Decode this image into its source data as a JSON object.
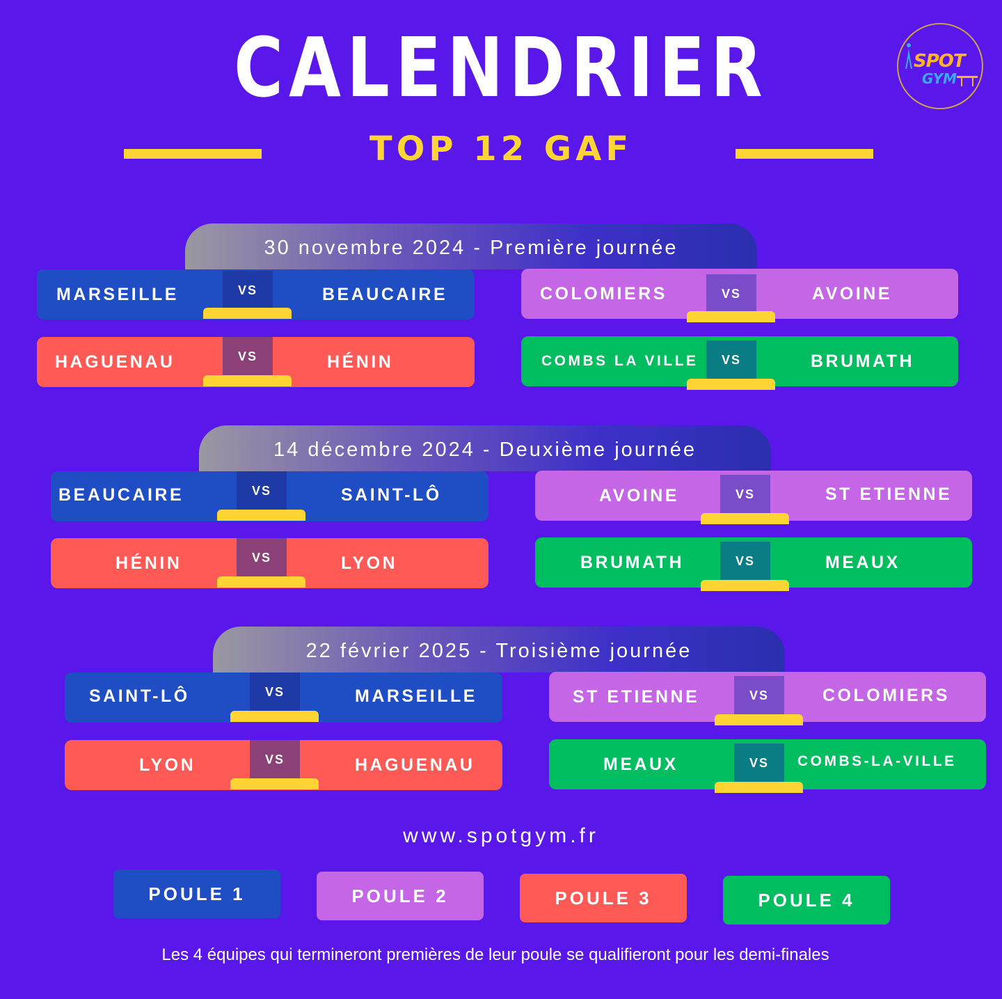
{
  "title": "CALENDRIER",
  "subtitle": "TOP 12 GAF",
  "logo": {
    "line1": "SPOT",
    "line2": "GYM"
  },
  "colors": {
    "background": "#5a17ea",
    "accent": "#ffd535",
    "poule1": "#1e4dc4",
    "poule2": "#c466e6",
    "poule3": "#ff5a56",
    "poule4": "#00be60"
  },
  "days": [
    {
      "header": "30 novembre 2024 - Première journée",
      "matches": [
        {
          "home": "MARSEILLE",
          "vs": "VS",
          "away": "BEAUCAIRE"
        },
        {
          "home": "COLOMIERS",
          "vs": "VS",
          "away": "AVOINE"
        },
        {
          "home": "HAGUENAU",
          "vs": "VS",
          "away": "HÉNIN"
        },
        {
          "home": "COMBS LA VILLE",
          "vs": "VS",
          "away": "BRUMATH"
        }
      ]
    },
    {
      "header": "14 décembre 2024 - Deuxième journée",
      "matches": [
        {
          "home": "BEAUCAIRE",
          "vs": "VS",
          "away": "SAINT-LÔ"
        },
        {
          "home": "AVOINE",
          "vs": "VS",
          "away": "ST ETIENNE"
        },
        {
          "home": "HÉNIN",
          "vs": "VS",
          "away": "LYON"
        },
        {
          "home": "BRUMATH",
          "vs": "VS",
          "away": "MEAUX"
        }
      ]
    },
    {
      "header": "22 février 2025 - Troisième journée",
      "matches": [
        {
          "home": "SAINT-LÔ",
          "vs": "VS",
          "away": "MARSEILLE"
        },
        {
          "home": "ST ETIENNE",
          "vs": "VS",
          "away": "COLOMIERS"
        },
        {
          "home": "LYON",
          "vs": "VS",
          "away": "HAGUENAU"
        },
        {
          "home": "MEAUX",
          "vs": "VS",
          "away": "COMBS-LA-VILLE"
        }
      ]
    }
  ],
  "website": "www.spotgym.fr",
  "poules": [
    "POULE 1",
    "POULE 2",
    "POULE 3",
    "POULE 4"
  ],
  "footnote": "Les 4 équipes qui termineront premières de leur poule se qualifieront pour les demi-finales"
}
